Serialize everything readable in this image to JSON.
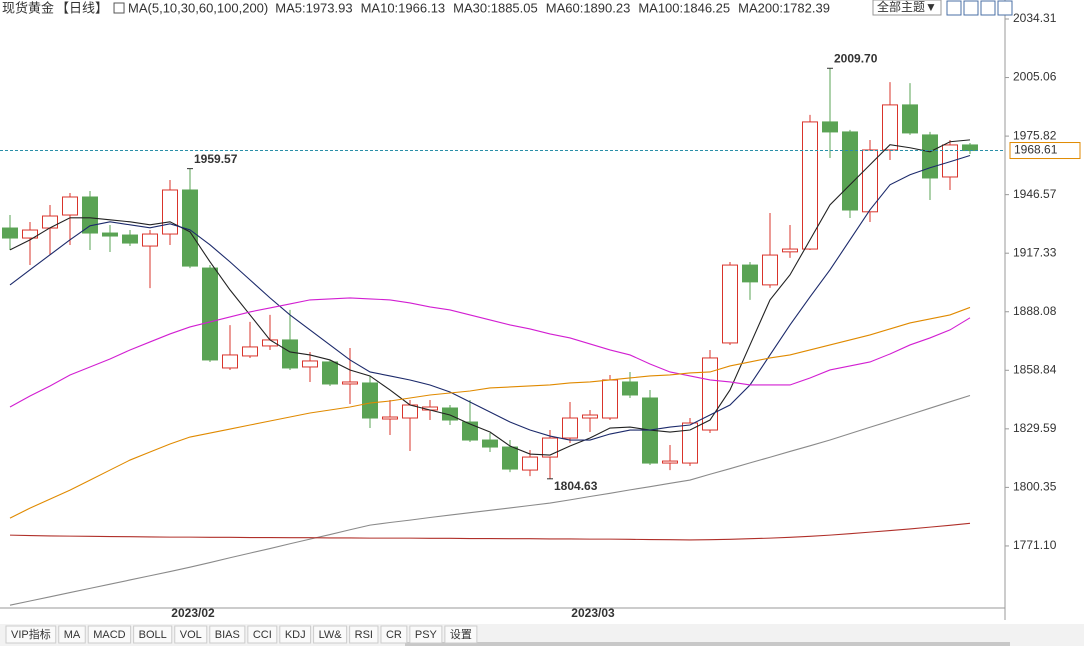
{
  "chart_data": {
    "type": "candlestick",
    "title": "现货黄金",
    "period": "【日线】",
    "indicator": "MA(5,10,30,60,100,200)",
    "categories": [
      null,
      null,
      null,
      null,
      null,
      null,
      null,
      null,
      null,
      "2023/02",
      null,
      null,
      null,
      null,
      null,
      null,
      null,
      null,
      null,
      null,
      null,
      null,
      null,
      null,
      null,
      null,
      null,
      null,
      null,
      "2023/03",
      null,
      null,
      null,
      null,
      null,
      null,
      null,
      null,
      null,
      null,
      null,
      null,
      null,
      null,
      null,
      null,
      null,
      null,
      null
    ],
    "open": [
      1929.9,
      1924.9,
      1929.9,
      1936.4,
      1945.4,
      1927.4,
      1926.4,
      1920.9,
      1926.9,
      1948.9,
      1909.9,
      1860.0,
      1866.0,
      1871.0,
      1874.0,
      1860.5,
      1863.0,
      1852.0,
      1852.5,
      1834.5,
      1835.0,
      1839.0,
      1840.0,
      1833.0,
      1824.0,
      1820.5,
      1809.0,
      1815.5,
      1825.0,
      1835.0,
      1835.0,
      1853.0,
      1845.0,
      1812.5,
      1812.5,
      1829.0,
      1872.5,
      1911.4,
      1901.5,
      1918.0,
      1919.4,
      1982.9,
      1977.9,
      1938.0,
      1968.9,
      1991.4,
      1976.4,
      1955.4,
      1971.4
    ],
    "high": [
      1936.4,
      1932.9,
      1941.4,
      1947.4,
      1948.4,
      1931.4,
      1928.9,
      1928.9,
      1953.9,
      1959.57,
      1911.4,
      1881.4,
      1883.0,
      1886.5,
      1889.0,
      1868.0,
      1864.0,
      1870.0,
      1856.0,
      1844.0,
      1844.0,
      1844.0,
      1841.5,
      1844.0,
      1827.5,
      1824.0,
      1819.0,
      1829.0,
      1843.0,
      1839.0,
      1856.5,
      1858.0,
      1849.0,
      1821.5,
      1835.0,
      1869.0,
      1912.9,
      1912.9,
      1937.4,
      1931.4,
      1986.4,
      2009.7,
      1978.9,
      1973.9,
      2002.8,
      2002.3,
      1977.9,
      1973.9,
      1972.4
    ],
    "low": [
      1918.9,
      1911.4,
      1916.4,
      1921.4,
      1918.9,
      1917.9,
      1920.9,
      1899.9,
      1921.4,
      1909.9,
      1863.0,
      1859.0,
      1865.0,
      1869.0,
      1859.0,
      1853.0,
      1851.0,
      1842.0,
      1830.0,
      1826.5,
      1818.5,
      1834.0,
      1831.5,
      1823.0,
      1818.0,
      1808.0,
      1806.0,
      1804.63,
      1822.5,
      1828.0,
      1834.0,
      1845.0,
      1811.5,
      1809.0,
      1811.0,
      1827.5,
      1871.5,
      1894.0,
      1900.0,
      1915.0,
      1918.9,
      1964.9,
      1934.9,
      1932.9,
      1963.9,
      1976.4,
      1943.9,
      1948.9,
      1966.9
    ],
    "close": [
      1924.9,
      1928.9,
      1935.9,
      1945.4,
      1927.4,
      1925.9,
      1922.4,
      1926.9,
      1948.9,
      1910.9,
      1864.0,
      1866.5,
      1870.5,
      1874.0,
      1860.0,
      1863.5,
      1852.0,
      1853.0,
      1835.0,
      1835.5,
      1841.5,
      1840.5,
      1834.0,
      1824.0,
      1820.5,
      1809.5,
      1815.5,
      1825.0,
      1835.0,
      1836.5,
      1854.0,
      1846.5,
      1812.5,
      1813.5,
      1832.5,
      1865.0,
      1911.4,
      1903.0,
      1916.4,
      1919.4,
      1982.9,
      1977.9,
      1938.9,
      1968.9,
      1991.4,
      1977.4,
      1954.9,
      1971.4,
      1968.61
    ],
    "up_color": "#d9342b",
    "down_color": "#5aa354",
    "series": [
      {
        "name": "MA5:1973.93",
        "color": "#222222",
        "values": [
          1919,
          1924,
          1930,
          1935,
          1935,
          1934,
          1933,
          1931.5,
          1933,
          1928,
          1913,
          1899,
          1886.5,
          1874,
          1868,
          1866.5,
          1864,
          1859,
          1856,
          1849,
          1841.5,
          1839,
          1836.5,
          1832,
          1828,
          1821,
          1817,
          1816.5,
          1821,
          1825,
          1830,
          1830.5,
          1829,
          1828,
          1829,
          1834,
          1849,
          1871.5,
          1894,
          1906.5,
          1924,
          1941.5,
          1951.5,
          1961.5,
          1971.5,
          1970,
          1968,
          1973,
          1973.93
        ]
      },
      {
        "name": "MA10:1966.13",
        "color": "#1c2a6b",
        "values": [
          1901.5,
          1909,
          1916.5,
          1924,
          1931,
          1933,
          1931.5,
          1930,
          1932,
          1929,
          1921.5,
          1913,
          1904,
          1895,
          1886.5,
          1879,
          1871.5,
          1864,
          1858,
          1856,
          1854,
          1851.5,
          1848,
          1843,
          1838,
          1833,
          1829,
          1826,
          1824,
          1824,
          1827,
          1829,
          1829,
          1830.5,
          1831.5,
          1836.5,
          1841.5,
          1851.5,
          1866.5,
          1881.5,
          1895.5,
          1909,
          1924,
          1939,
          1951.5,
          1956.5,
          1960,
          1963,
          1966.13
        ]
      },
      {
        "name": "MA30:1885.05",
        "color": "#d21fd2",
        "values": [
          1840.5,
          1846,
          1851,
          1856.5,
          1860.5,
          1864.5,
          1869,
          1873,
          1877,
          1880.5,
          1883,
          1885.5,
          1888,
          1890,
          1892,
          1894,
          1894.5,
          1895,
          1894.5,
          1894,
          1892.5,
          1890.5,
          1889,
          1886.5,
          1884,
          1881.5,
          1879.5,
          1877,
          1875,
          1872,
          1869,
          1866.5,
          1862,
          1858,
          1856,
          1854,
          1853,
          1851.5,
          1851.5,
          1851.5,
          1855,
          1859,
          1861,
          1863,
          1867,
          1871.5,
          1875,
          1879,
          1885.05
        ]
      },
      {
        "name": "MA60:1890.23",
        "color": "#e08a00",
        "values": [
          1785,
          1790,
          1794.5,
          1799,
          1804,
          1809,
          1814,
          1818,
          1822,
          1825.5,
          1827.5,
          1829.5,
          1831.5,
          1833.5,
          1835.5,
          1837.5,
          1839,
          1840.5,
          1842.5,
          1843.5,
          1845,
          1846.5,
          1847.5,
          1848.5,
          1850,
          1850.5,
          1851,
          1851.5,
          1852.5,
          1853,
          1854,
          1855,
          1856,
          1856.5,
          1857.5,
          1858,
          1861,
          1863,
          1865,
          1866.5,
          1869,
          1871.5,
          1874,
          1876.5,
          1879.5,
          1882.5,
          1884.5,
          1886.5,
          1890.23
        ]
      },
      {
        "name": "MA100:1846.25",
        "color": "#8a8a8a",
        "values": [
          1741.5,
          1743.6,
          1745.7,
          1747.8,
          1749.9,
          1752,
          1754.1,
          1756.2,
          1758.3,
          1760.5,
          1762.8,
          1765.2,
          1767.5,
          1769.8,
          1772.2,
          1774.5,
          1776.8,
          1779.2,
          1781.5,
          1782.8,
          1784,
          1785.3,
          1786.5,
          1787.7,
          1788.9,
          1790.1,
          1791.3,
          1792.5,
          1794.1,
          1795.8,
          1797.4,
          1799.1,
          1800.7,
          1802.4,
          1804,
          1806.9,
          1809.7,
          1812.6,
          1815.4,
          1818.3,
          1821.1,
          1824,
          1827.2,
          1830.4,
          1833.5,
          1836.7,
          1839.9,
          1843.1,
          1846.25
        ]
      },
      {
        "name": "MA200:1782.39",
        "color": "#b0302a",
        "values": [
          1776.5,
          1776.3,
          1776.1,
          1776,
          1775.9,
          1775.8,
          1775.7,
          1775.6,
          1775.5,
          1775.5,
          1775.4,
          1775.4,
          1775.3,
          1775.3,
          1775.2,
          1775.2,
          1775.1,
          1775.1,
          1775,
          1775,
          1775,
          1774.9,
          1774.9,
          1774.8,
          1774.8,
          1774.7,
          1774.7,
          1774.6,
          1774.6,
          1774.5,
          1774.5,
          1774.4,
          1774.3,
          1774.2,
          1774.1,
          1774.2,
          1774.4,
          1774.7,
          1775,
          1775.4,
          1775.9,
          1776.5,
          1777.2,
          1778,
          1778.8,
          1779.6,
          1780.5,
          1781.4,
          1782.39
        ]
      }
    ],
    "annotations": [
      1959.57,
      {
        "value": 2009.7,
        "label": "2009.70"
      },
      1804.63
    ],
    "last_price": 1968.61,
    "last_price_color": "#e08a00",
    "ylim": [
      1740.1,
      2043.8
    ],
    "yticks": [
      2034.31,
      2005.06,
      1975.82,
      1946.57,
      1917.33,
      1888.08,
      1858.84,
      1829.59,
      1800.35,
      {
        "value": 1771.1,
        "label": "1771.10"
      }
    ],
    "grid": false
  },
  "toolbar": {
    "theme": "全部主题▼"
  },
  "tabs": [
    "VIP指标",
    "MA",
    "MACD",
    "BOLL",
    "VOL",
    "BIAS",
    "CCI",
    "KDJ",
    "LW&",
    "RSI",
    "CR",
    "PSY",
    "设置"
  ]
}
